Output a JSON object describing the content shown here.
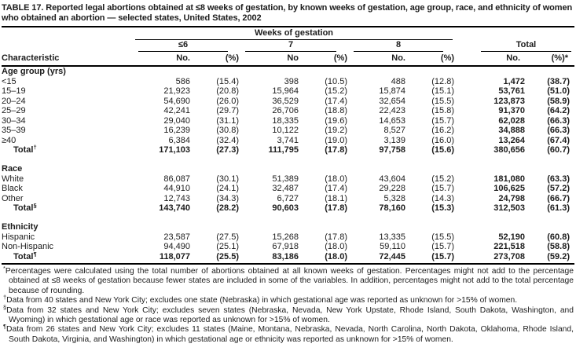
{
  "title": "TABLE 17. Reported legal abortions obtained at ≤8 weeks of gestation, by known weeks of gestation, age group, race, and ethnicity of women who obtained an abortion — selected states, United States, 2002",
  "table": {
    "spanner": "Weeks of gestation",
    "stub_header": "Characteristic",
    "group_headers": [
      "≤6",
      "7",
      "8"
    ],
    "total_header": "Total",
    "sub_headers": [
      "No.",
      "(%)",
      "No",
      "(%)",
      "No.",
      "(%)",
      "No.",
      "(%)*"
    ],
    "sections": [
      {
        "header": "Age group (yrs)",
        "rows": [
          {
            "label": "<15",
            "cells": [
              "586",
              "(15.4)",
              "398",
              "(10.5)",
              "488",
              "(12.8)",
              "1,472",
              "(38.7)"
            ]
          },
          {
            "label": "15–19",
            "cells": [
              "21,923",
              "(20.8)",
              "15,964",
              "(15.2)",
              "15,874",
              "(15.1)",
              "53,761",
              "(51.0)"
            ]
          },
          {
            "label": "20–24",
            "cells": [
              "54,690",
              "(26.0)",
              "36,529",
              "(17.4)",
              "32,654",
              "(15.5)",
              "123,873",
              "(58.9)"
            ]
          },
          {
            "label": "25–29",
            "cells": [
              "42,241",
              "(29.7)",
              "26,706",
              "(18.8)",
              "22,423",
              "(15.8)",
              "91,370",
              "(64.2)"
            ]
          },
          {
            "label": "30–34",
            "cells": [
              "29,040",
              "(31.1)",
              "18,335",
              "(19.6)",
              "14,653",
              "(15.7)",
              "62,028",
              "(66.3)"
            ]
          },
          {
            "label": "35–39",
            "cells": [
              "16,239",
              "(30.8)",
              "10,122",
              "(19.2)",
              "8,527",
              "(16.2)",
              "34,888",
              "(66.3)"
            ]
          },
          {
            "label": "≥40",
            "cells": [
              "6,384",
              "(32.4)",
              "3,741",
              "(19.0)",
              "3,139",
              "(16.0)",
              "13,264",
              "(67.4)"
            ]
          },
          {
            "label": "Total",
            "marker": "†",
            "total": true,
            "cells": [
              "171,103",
              "(27.3)",
              "111,795",
              "(17.8)",
              "97,758",
              "(15.6)",
              "380,656",
              "(60.7)"
            ]
          }
        ]
      },
      {
        "header": "Race",
        "rows": [
          {
            "label": "White",
            "cells": [
              "86,087",
              "(30.1)",
              "51,389",
              "(18.0)",
              "43,604",
              "(15.2)",
              "181,080",
              "(63.3)"
            ]
          },
          {
            "label": "Black",
            "cells": [
              "44,910",
              "(24.1)",
              "32,487",
              "(17.4)",
              "29,228",
              "(15.7)",
              "106,625",
              "(57.2)"
            ]
          },
          {
            "label": "Other",
            "cells": [
              "12,743",
              "(34.3)",
              "6,727",
              "(18.1)",
              "5,328",
              "(14.3)",
              "24,798",
              "(66.7)"
            ]
          },
          {
            "label": "Total",
            "marker": "§",
            "total": true,
            "cells": [
              "143,740",
              "(28.2)",
              "90,603",
              "(17.8)",
              "78,160",
              "(15.3)",
              "312,503",
              "(61.3)"
            ]
          }
        ]
      },
      {
        "header": "Ethnicity",
        "rows": [
          {
            "label": "Hispanic",
            "cells": [
              "23,587",
              "(27.5)",
              "15,268",
              "(17.8)",
              "13,335",
              "(15.5)",
              "52,190",
              "(60.8)"
            ]
          },
          {
            "label": "Non-Hispanic",
            "cells": [
              "94,490",
              "(25.1)",
              "67,918",
              "(18.0)",
              "59,110",
              "(15.7)",
              "221,518",
              "(58.8)"
            ]
          },
          {
            "label": "Total",
            "marker": "¶",
            "total": true,
            "cells": [
              "118,077",
              "(25.5)",
              "83,186",
              "(18.0)",
              "72,445",
              "(15.7)",
              "273,708",
              "(59.2)"
            ]
          }
        ]
      }
    ]
  },
  "footnotes": [
    {
      "marker": "*",
      "text": "Percentages were calculated using the total number of abortions obtained at all known weeks of gestation. Percentages might not add to the percentage obtained at ≤8 weeks of gestation because fewer states are included in some of the variables. In addition, percentages might not add to the total percentage because of rounding."
    },
    {
      "marker": "†",
      "text": "Data from 40 states and New York City; excludes one state (Nebraska) in which gestational age was reported as unknown for >15% of women."
    },
    {
      "marker": "§",
      "text": "Data from 32 states and New York City; excludes seven states (Nebraska, Nevada, New York Upstate, Rhode Island, South Dakota, Washington, and Wyoming) in which gestational age or race was reported as unknown for >15% of women."
    },
    {
      "marker": "¶",
      "text": "Data from 26 states and New York City; excludes 11 states (Maine, Montana, Nebraska, Nevada, North Carolina, North Dakota, Oklahoma, Rhode Island, South Dakota, Virginia, and Washington) in which gestational age or ethnicity was reported as unknown for >15% of women."
    }
  ]
}
